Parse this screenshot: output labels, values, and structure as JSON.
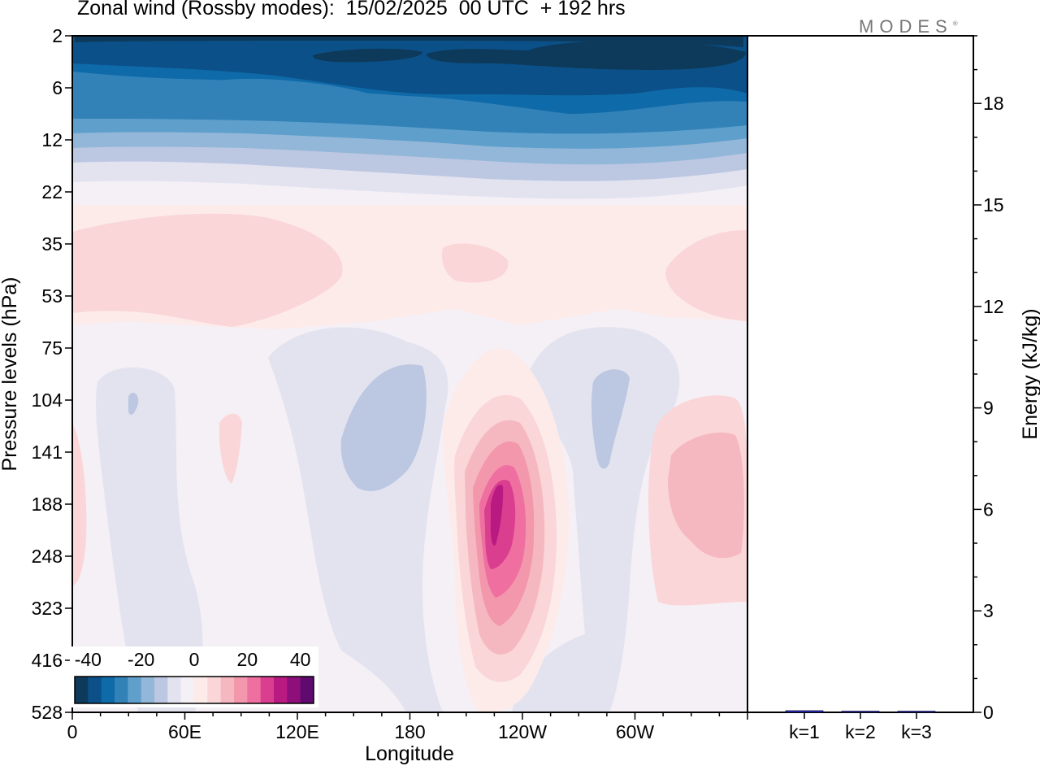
{
  "title": "Zonal wind (Rossby modes):  15/02/2025  00 UTC  + 192 hrs",
  "logo": "MODES",
  "logo_mark": "®",
  "chart_data": [
    {
      "type": "heatmap",
      "xlabel": "Longitude",
      "ylabel": "Pressure levels (hPa)",
      "x_ticks": [
        "0",
        "60E",
        "120E",
        "180",
        "120W",
        "60W"
      ],
      "x_tick_values": [
        0,
        60,
        120,
        180,
        240,
        300
      ],
      "xlim": [
        0,
        360
      ],
      "y_ticks": [
        "2",
        "6",
        "12",
        "22",
        "35",
        "53",
        "75",
        "104",
        "141",
        "188",
        "248",
        "323",
        "416",
        "528"
      ],
      "y_axis_direction": "pressure decreasing upward",
      "colorbar": {
        "ticks": [
          "-40",
          "-20",
          "0",
          "20",
          "40"
        ],
        "tick_values": [
          -40,
          -20,
          0,
          20,
          40
        ],
        "range": [
          -45,
          45
        ],
        "step": 5,
        "colors": [
          "#0d3a5a",
          "#0b5088",
          "#0e6aa8",
          "#3282b8",
          "#5f9fcc",
          "#92b7d8",
          "#bcc7e2",
          "#e3e3f0",
          "#f5eff6",
          "#fdebea",
          "#fad6d8",
          "#f6b8c0",
          "#f397ad",
          "#ef6fa0",
          "#d93e8f",
          "#b81a82",
          "#8e0f7a",
          "#5e0a6e"
        ]
      },
      "features": [
        {
          "description_of": "upper easterlies",
          "lon_range": [
            0,
            360
          ],
          "levels": "2-6 hPa",
          "value": -40
        },
        {
          "description_of": "easterly layer",
          "lon_range": [
            0,
            360
          ],
          "levels": "6-16 hPa",
          "value": -25
        },
        {
          "description_of": "westerly band",
          "lon_range": [
            0,
            145
          ],
          "levels": "35-53 hPa",
          "value": 5
        },
        {
          "description_of": "westerly jet max",
          "lon": 226,
          "level": "188 hPa",
          "value": 40
        },
        {
          "description_of": "westerly max",
          "lon": 340,
          "level": "188 hPa",
          "value": 15
        },
        {
          "description_of": "easterly cell",
          "lon": 160,
          "level": "141 hPa",
          "value": -10
        },
        {
          "description_of": "easterly cell",
          "lon": 285,
          "level": "104 hPa",
          "value": -10
        }
      ]
    },
    {
      "type": "bar",
      "ylabel": "Energy (kJ/kg)",
      "ylim": [
        0,
        20
      ],
      "y_ticks": [
        "0",
        "3",
        "6",
        "9",
        "12",
        "15",
        "18"
      ],
      "y_tick_values": [
        0,
        3,
        6,
        9,
        12,
        15,
        18
      ],
      "categories": [
        "k=1",
        "k=2",
        "k=3"
      ],
      "values": [
        0.05,
        0.02,
        0.02
      ],
      "bar_color": "#2b2bd6"
    }
  ]
}
